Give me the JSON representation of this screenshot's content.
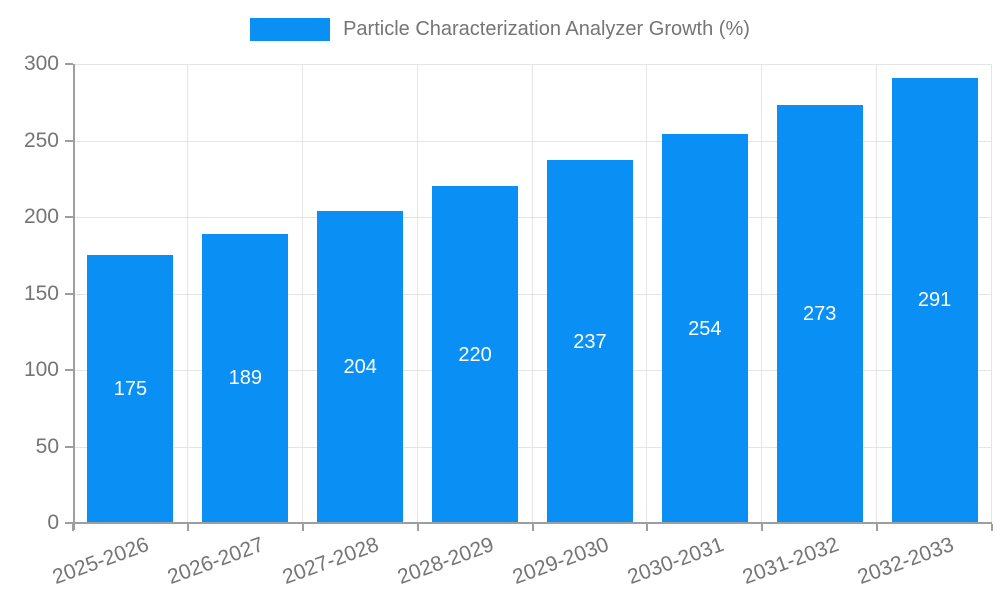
{
  "chart_data": {
    "type": "bar",
    "title": "Particle Characterization Analyzer Growth (%)",
    "categories": [
      "2025-2026",
      "2026-2027",
      "2027-2028",
      "2028-2029",
      "2029-2030",
      "2030-2031",
      "2031-2032",
      "2032-2033"
    ],
    "values": [
      175,
      189,
      204,
      220,
      237,
      254,
      273,
      291
    ],
    "xlabel": "",
    "ylabel": "",
    "ylim": [
      0,
      300
    ],
    "ytick_step": 50,
    "ytick_labels": [
      "0",
      "50",
      "100",
      "150",
      "200",
      "250",
      "300"
    ],
    "grid": true,
    "legend_position": "top",
    "value_labels_inside_bars": true,
    "colors": {
      "bar": "#0a8ff5",
      "value_label": "#ffffff",
      "gridline": "#e5e5e5",
      "axis_line": "#9e9e9e",
      "tick_label": "#757575",
      "legend_text": "#757575",
      "background": "#ffffff"
    }
  }
}
